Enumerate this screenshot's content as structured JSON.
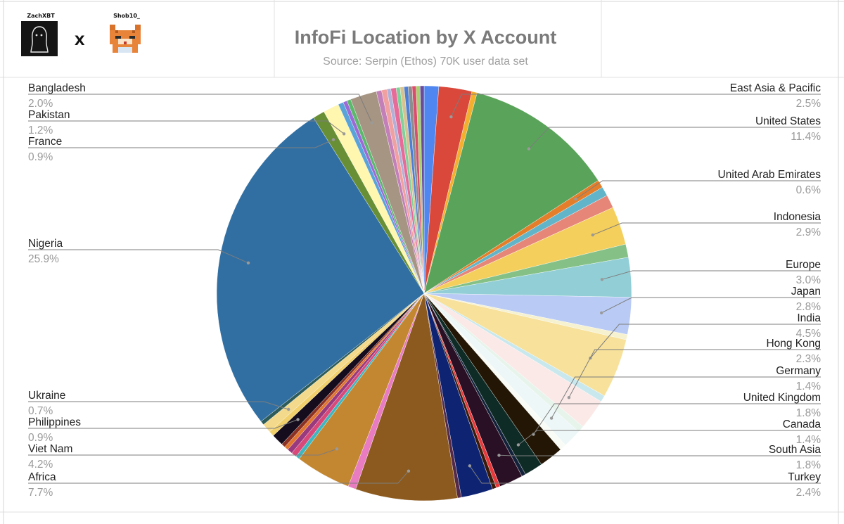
{
  "header": {
    "logo_left_caption": "ZachXBT",
    "logo_right_caption": "Shob10_",
    "separator": "x"
  },
  "chart_data": {
    "type": "pie",
    "title": "InfoFi Location by X Account",
    "subtitle": "Source: Serpin (Ethos) 70K user data set",
    "slices": [
      {
        "name": "",
        "value": 1.1,
        "color": "#4f86f0"
      },
      {
        "name": "East Asia & Pacific",
        "value": 2.5,
        "color": "#d9483b",
        "label": "2.5%"
      },
      {
        "name": "",
        "value": 0.4,
        "color": "#f3b02f"
      },
      {
        "name": "United States",
        "value": 11.4,
        "color": "#5aa35a",
        "label": "11.4%"
      },
      {
        "name": "United Arab Emirates",
        "value": 0.6,
        "color": "#e47e2a",
        "label": "0.6%"
      },
      {
        "name": "",
        "value": 0.7,
        "color": "#62b5c8"
      },
      {
        "name": "",
        "value": 1.0,
        "color": "#e58679"
      },
      {
        "name": "Indonesia",
        "value": 2.9,
        "color": "#f5cf5c",
        "label": "2.9%"
      },
      {
        "name": "",
        "value": 1.0,
        "color": "#85c187"
      },
      {
        "name": "Europe",
        "value": 3.0,
        "color": "#92ced6",
        "label": "3.0%"
      },
      {
        "name": "Japan",
        "value": 2.8,
        "color": "#b9cbf4",
        "label": "2.8%"
      },
      {
        "name": "",
        "value": 0.4,
        "color": "#f6f1cf"
      },
      {
        "name": "India",
        "value": 4.5,
        "color": "#f7e19b",
        "label": "4.5%"
      },
      {
        "name": "",
        "value": 0.5,
        "color": "#c9e8ee"
      },
      {
        "name": "Hong Kong",
        "value": 2.3,
        "color": "#fbe9e7",
        "label": "2.3%"
      },
      {
        "name": "",
        "value": 0.5,
        "color": "#e7f4ec"
      },
      {
        "name": "Germany",
        "value": 1.4,
        "color": "#eef7f7",
        "label": "1.4%"
      },
      {
        "name": "",
        "value": 0.5,
        "color": "#f9fcf6"
      },
      {
        "name": "United Kingdom",
        "value": 1.8,
        "color": "#231605",
        "label": "1.8%"
      },
      {
        "name": "Canada",
        "value": 1.4,
        "color": "#0e2b26",
        "label": "1.4%"
      },
      {
        "name": "",
        "value": 0.3,
        "color": "#13213a"
      },
      {
        "name": "South Asia",
        "value": 1.8,
        "color": "#2a1024",
        "label": "1.8%"
      },
      {
        "name": "",
        "value": 0.3,
        "color": "#e8383b"
      },
      {
        "name": "",
        "value": 0.3,
        "color": "#3a1b0b"
      },
      {
        "name": "Turkey",
        "value": 2.4,
        "color": "#0e2473",
        "label": "2.4%"
      },
      {
        "name": "",
        "value": 0.3,
        "color": "#552a48"
      },
      {
        "name": "Africa",
        "value": 7.7,
        "color": "#8c5a1e",
        "label": "7.7%"
      },
      {
        "name": "",
        "value": 0.6,
        "color": "#e97bc1"
      },
      {
        "name": "Viet Nam",
        "value": 4.2,
        "color": "#c38631",
        "label": "4.2%"
      },
      {
        "name": "",
        "value": 0.3,
        "color": "#3fb7bf"
      },
      {
        "name": "",
        "value": 0.4,
        "color": "#d8497a"
      },
      {
        "name": "",
        "value": 0.4,
        "color": "#9a3a7e"
      },
      {
        "name": "",
        "value": 0.3,
        "color": "#e0762f"
      },
      {
        "name": "",
        "value": 0.3,
        "color": "#8a3124"
      },
      {
        "name": "Philippines",
        "value": 0.9,
        "color": "#150d1d",
        "label": "0.9%"
      },
      {
        "name": "",
        "value": 0.4,
        "color": "#f1cf6b"
      },
      {
        "name": "Ukraine",
        "value": 0.7,
        "color": "#f3d98b",
        "label": "0.7%"
      },
      {
        "name": "",
        "value": 0.3,
        "color": "#2d5c5b"
      },
      {
        "name": "Nigeria",
        "value": 25.9,
        "color": "#316fa3",
        "label": "25.9%"
      },
      {
        "name": "France",
        "value": 0.9,
        "color": "#688f35",
        "label": "0.9%"
      },
      {
        "name": "Pakistan",
        "value": 1.2,
        "color": "#fff6b0",
        "label": "1.2%"
      },
      {
        "name": "",
        "value": 0.4,
        "color": "#5aa3d8"
      },
      {
        "name": "",
        "value": 0.3,
        "color": "#9c6ad6"
      },
      {
        "name": "",
        "value": 0.3,
        "color": "#5cb86b"
      },
      {
        "name": "Bangladesh",
        "value": 2.0,
        "color": "#a69583",
        "label": "2.0%"
      },
      {
        "name": "",
        "value": 0.4,
        "color": "#c27fb8"
      },
      {
        "name": "",
        "value": 0.4,
        "color": "#f0a0a0"
      },
      {
        "name": "",
        "value": 0.3,
        "color": "#b0b0d8"
      },
      {
        "name": "",
        "value": 0.4,
        "color": "#e76b98"
      },
      {
        "name": "",
        "value": 0.3,
        "color": "#7fd19a"
      },
      {
        "name": "",
        "value": 0.3,
        "color": "#d8c28e"
      },
      {
        "name": "",
        "value": 0.3,
        "color": "#4e7fd6"
      },
      {
        "name": "",
        "value": 0.3,
        "color": "#8d8d8d"
      },
      {
        "name": "",
        "value": 0.3,
        "color": "#d94e6c"
      },
      {
        "name": "",
        "value": 0.3,
        "color": "#a7d36e"
      },
      {
        "name": "",
        "value": 0.3,
        "color": "#6b4c9a"
      }
    ]
  }
}
